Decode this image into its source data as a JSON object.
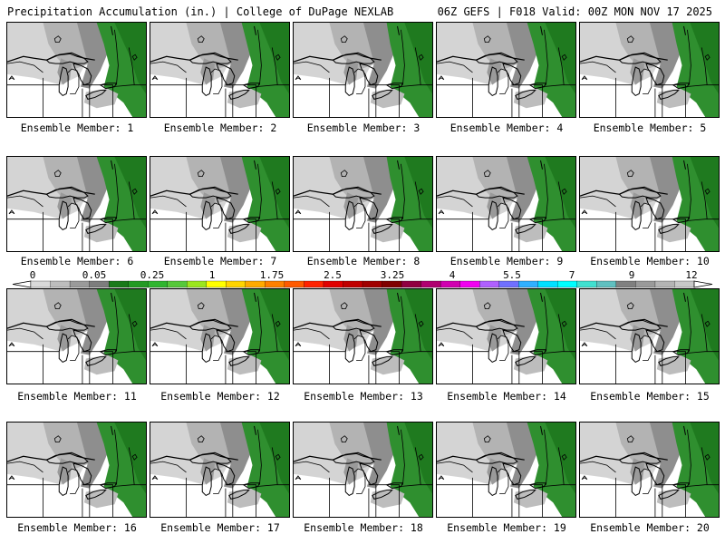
{
  "header": {
    "left": "Precipitation Accumulation (in.) | College of DuPage NEXLAB",
    "right": "06Z GEFS | F018 Valid: 00Z MON NOV 17 2025"
  },
  "map_features": [
    "great-lakes-outline",
    "state-borders",
    "canada-border",
    "station-marker",
    "precipitation-shading"
  ],
  "members": [
    "Ensemble Member: 1",
    "Ensemble Member: 2",
    "Ensemble Member: 3",
    "Ensemble Member: 4",
    "Ensemble Member: 5",
    "Ensemble Member: 6",
    "Ensemble Member: 7",
    "Ensemble Member: 8",
    "Ensemble Member: 9",
    "Ensemble Member: 10",
    "Ensemble Member: 11",
    "Ensemble Member: 12",
    "Ensemble Member: 13",
    "Ensemble Member: 14",
    "Ensemble Member: 15",
    "Ensemble Member: 16",
    "Ensemble Member: 17",
    "Ensemble Member: 18",
    "Ensemble Member: 19",
    "Ensemble Member: 20"
  ],
  "color_scale": {
    "labels": [
      "0",
      "0.05",
      "0.25",
      "1",
      "1.75",
      "2.5",
      "3.25",
      "4",
      "5.5",
      "7",
      "9",
      "12"
    ],
    "colors": [
      "#d9d9d9",
      "#bdbdbd",
      "#9a9a9a",
      "#7d7d7d",
      "#1a7a1a",
      "#239a23",
      "#2fb52f",
      "#56c83a",
      "#9be61e",
      "#ffff00",
      "#ffd400",
      "#ffaa00",
      "#ff8000",
      "#ff5a00",
      "#ff2200",
      "#e00000",
      "#c00000",
      "#a00000",
      "#800000",
      "#900040",
      "#b00070",
      "#d000b0",
      "#f000f0",
      "#b060ff",
      "#7070ff",
      "#30b0ff",
      "#00e0ff",
      "#00ffff",
      "#40e0d0",
      "#60c0c0",
      "#808080",
      "#9a9a9a",
      "#b4b4b4",
      "#c8c8c8"
    ]
  }
}
